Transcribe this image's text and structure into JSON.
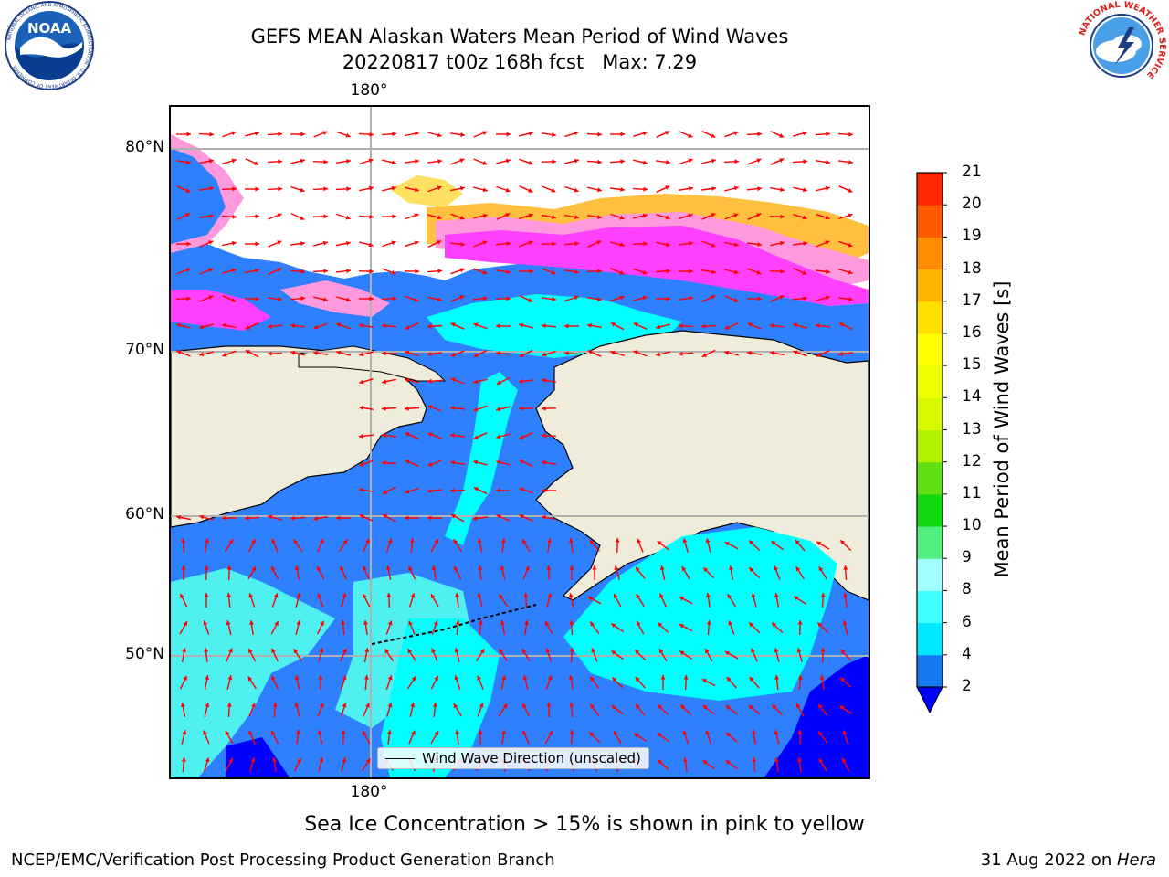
{
  "title": {
    "line1": "GEFS MEAN Alaskan Waters Mean Period of Wind Waves",
    "line2": "20220817 t00z 168h fcst   Max: 7.29"
  },
  "logos": {
    "noaa": {
      "text": "NOAA",
      "ring_text": "NATIONAL OCEANIC AND ATMOSPHERIC ADMINISTRATION · U.S. DEPARTMENT OF COMMERCE"
    },
    "nws": {
      "ring_text": "NATIONAL WEATHER SERVICE"
    }
  },
  "map": {
    "lat_labels": [
      "80°N",
      "70°N",
      "60°N",
      "50°N"
    ],
    "lon_label_top": "180°",
    "lon_label_bottom": "180°",
    "legend_label": "Wind Wave Direction (unscaled)",
    "colors": {
      "land": "#efecdc",
      "ice_white": "#ffffff",
      "blue": "#2f80ff",
      "cyan": "#00ffff",
      "light_cyan": "#4ef0f0",
      "dark_blue": "#0000ff",
      "pink": "#ff40ff",
      "light_pink": "#ff99dd",
      "orange_ice": "#ffc040",
      "yellow_ice": "#ffe060",
      "arrow": "#ff0000",
      "grid": "#b0b0b0"
    }
  },
  "colorbar": {
    "label": "Mean Period of Wind Waves [s]",
    "ticks": [
      "2",
      "4",
      "6",
      "8",
      "9",
      "10",
      "11",
      "12",
      "13",
      "14",
      "15",
      "16",
      "17",
      "18",
      "19",
      "20",
      "21"
    ],
    "colors": [
      "#1478f0",
      "#00e8ff",
      "#40ffff",
      "#a0ffff",
      "#50f080",
      "#10d810",
      "#60e010",
      "#b0f000",
      "#d8f800",
      "#f0ff00",
      "#ffff00",
      "#ffe000",
      "#ffb400",
      "#ff8c00",
      "#ff5a00",
      "#ff2800",
      "#ff0000"
    ],
    "extend_color": "#0000ff"
  },
  "caption": "Sea Ice Concentration > 15% is shown in pink to yellow",
  "footer": {
    "left": "NCEP/EMC/Verification Post Processing Product Generation Branch",
    "right_date": "31 Aug 2022 on ",
    "right_host": "Hera"
  }
}
